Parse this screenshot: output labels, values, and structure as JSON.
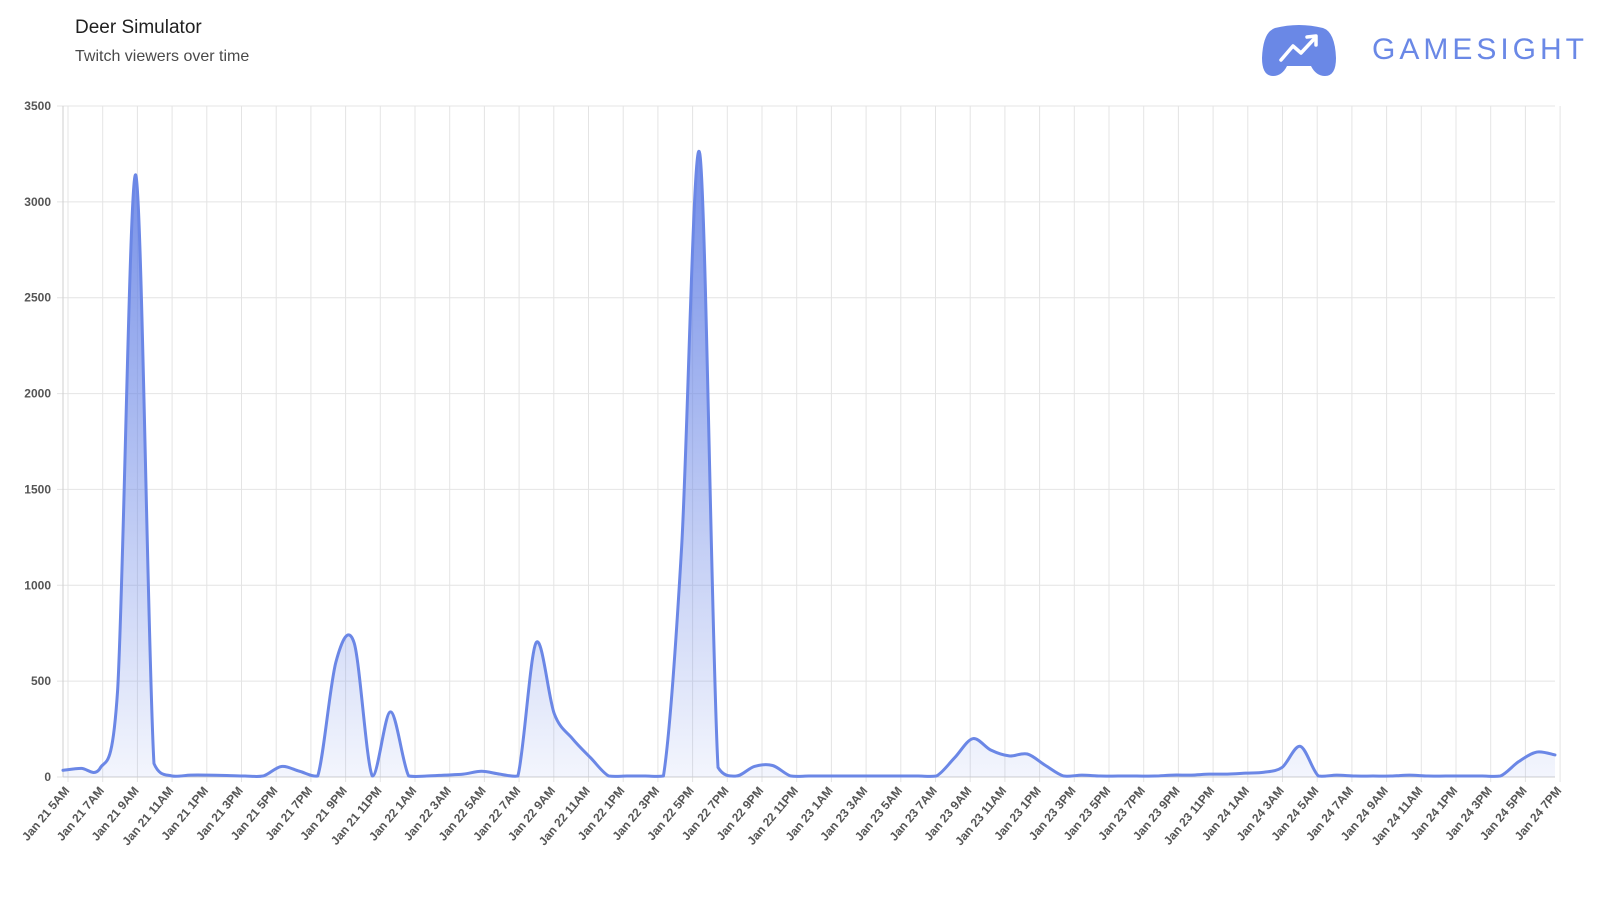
{
  "header": {
    "title": "Deer Simulator",
    "subtitle": "Twitch viewers over time"
  },
  "brand": {
    "name": "GAMESIGHT",
    "logo_icon": "gamepad-trend-icon",
    "color": "#6a88e6"
  },
  "chart_data": {
    "type": "area",
    "title": "Deer Simulator",
    "subtitle": "Twitch viewers over time",
    "xlabel": "",
    "ylabel": "",
    "ylim": [
      0,
      3500
    ],
    "yticks": [
      0,
      500,
      1000,
      1500,
      2000,
      2500,
      3000,
      3500
    ],
    "grid": true,
    "line_color": "#6b87e6",
    "x_labels": [
      "Jan 21 5AM",
      "Jan 21 7AM",
      "Jan 21 9AM",
      "Jan 21 11AM",
      "Jan 21 1PM",
      "Jan 21 3PM",
      "Jan 21 5PM",
      "Jan 21 7PM",
      "Jan 21 9PM",
      "Jan 21 11PM",
      "Jan 22 1AM",
      "Jan 22 3AM",
      "Jan 22 5AM",
      "Jan 22 7AM",
      "Jan 22 9AM",
      "Jan 22 11AM",
      "Jan 22 1PM",
      "Jan 22 3PM",
      "Jan 22 5PM",
      "Jan 22 7PM",
      "Jan 22 9PM",
      "Jan 22 11PM",
      "Jan 23 1AM",
      "Jan 23 3AM",
      "Jan 23 5AM",
      "Jan 23 7AM",
      "Jan 23 9AM",
      "Jan 23 11AM",
      "Jan 23 1PM",
      "Jan 23 3PM",
      "Jan 23 5PM",
      "Jan 23 7PM",
      "Jan 23 9PM",
      "Jan 23 11PM",
      "Jan 24 1AM",
      "Jan 24 3AM",
      "Jan 24 5AM",
      "Jan 24 7AM",
      "Jan 24 9AM",
      "Jan 24 11AM",
      "Jan 24 1PM",
      "Jan 24 3PM",
      "Jan 24 5PM",
      "Jan 24 7PM"
    ],
    "series": [
      {
        "values": [
          35,
          45,
          40,
          450,
          3140,
          70,
          5,
          10,
          10,
          8,
          5,
          5,
          55,
          30,
          5,
          600,
          700,
          5,
          340,
          5,
          5,
          10,
          15,
          30,
          15,
          5,
          700,
          330,
          200,
          100,
          5,
          5,
          5,
          5,
          1200,
          3250,
          50,
          5,
          55,
          60,
          5,
          5,
          5,
          5,
          5,
          5,
          5,
          5,
          5,
          100,
          200,
          140,
          110,
          120,
          60,
          5,
          10,
          5,
          5,
          5,
          5,
          10,
          10,
          15,
          15,
          20,
          25,
          50,
          160,
          5,
          10,
          5,
          5,
          5,
          10,
          5,
          5,
          5,
          5,
          5,
          80,
          130,
          115
        ]
      }
    ]
  }
}
